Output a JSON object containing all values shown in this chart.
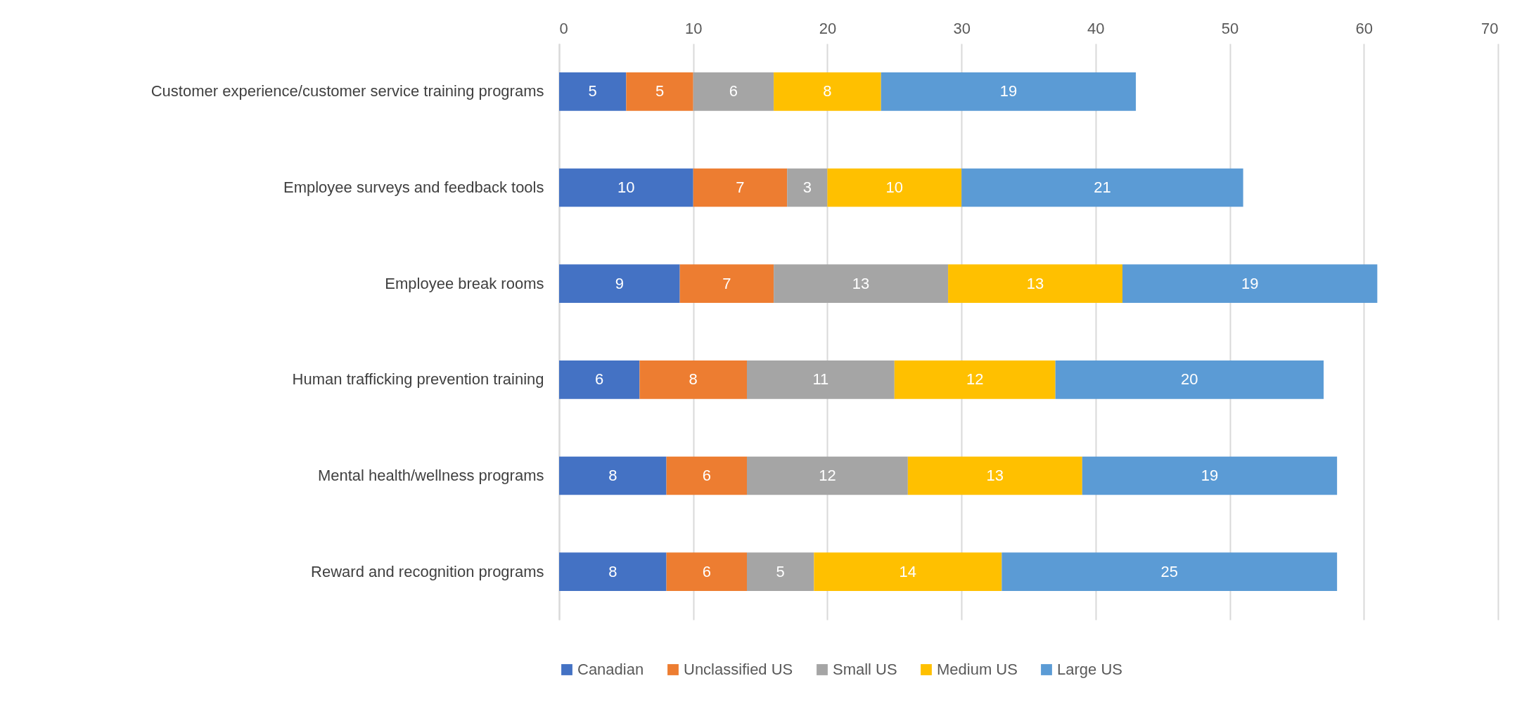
{
  "chart_data": {
    "type": "bar",
    "orientation": "horizontal",
    "stacked": true,
    "data_labels": true,
    "grid": "x",
    "legend": "bottom",
    "categories": [
      "Customer experience/customer service training programs",
      "Employee surveys and feedback tools",
      "Employee break rooms",
      "Human trafficking prevention training",
      "Mental health/wellness programs",
      "Reward and recognition programs"
    ],
    "series": [
      {
        "name": "Canadian",
        "color": "#4472c4",
        "values": [
          5,
          10,
          9,
          6,
          8,
          8
        ]
      },
      {
        "name": "Unclassified US",
        "color": "#ed7d31",
        "values": [
          5,
          7,
          7,
          8,
          6,
          6
        ]
      },
      {
        "name": "Small US",
        "color": "#a5a5a5",
        "values": [
          6,
          3,
          13,
          11,
          12,
          5
        ]
      },
      {
        "name": "Medium US",
        "color": "#ffc000",
        "values": [
          8,
          10,
          13,
          12,
          13,
          14
        ]
      },
      {
        "name": "Large US",
        "color": "#5b9bd5",
        "values": [
          19,
          21,
          19,
          20,
          19,
          25
        ]
      }
    ],
    "xlim": [
      0,
      70
    ],
    "xticks": [
      0,
      10,
      20,
      30,
      40,
      50,
      60,
      70
    ]
  }
}
